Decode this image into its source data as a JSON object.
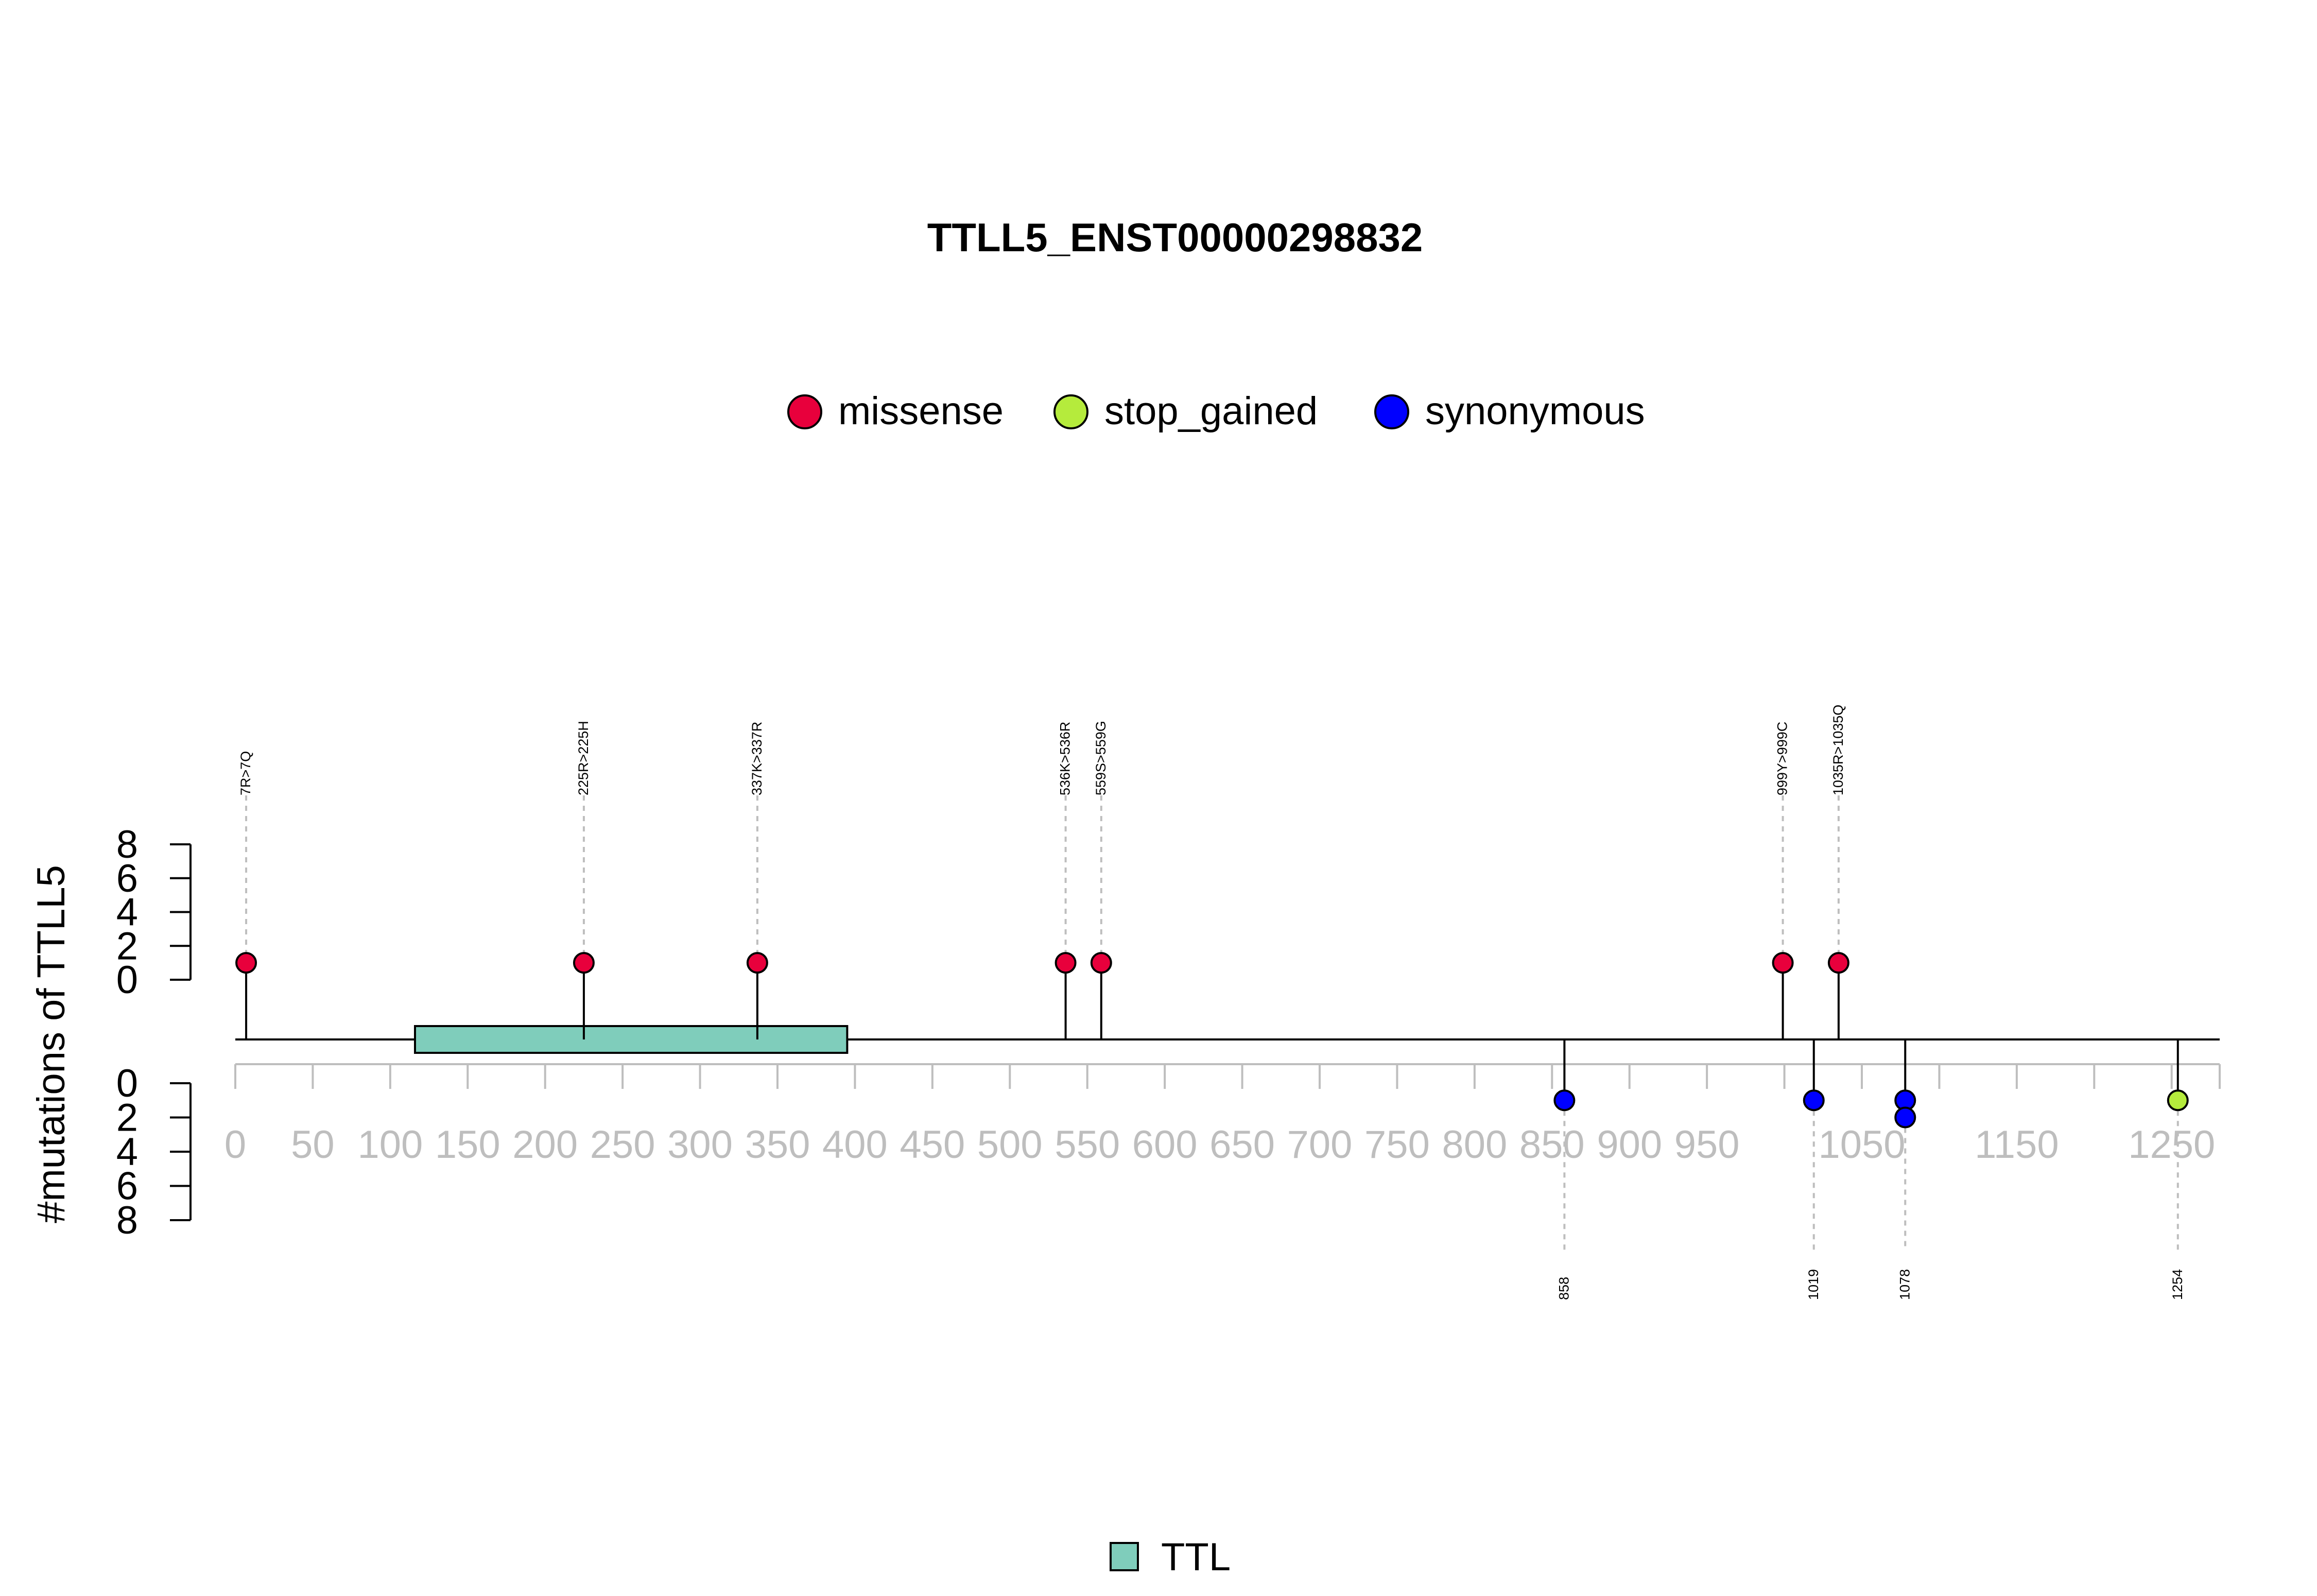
{
  "chart_data": {
    "type": "lollipop",
    "title": "TTLL5_ENST00000298832",
    "ylabel": "#mutations of TTLL5",
    "xlim": [
      0,
      1281
    ],
    "x_ticks": [
      0,
      50,
      100,
      150,
      200,
      250,
      300,
      350,
      400,
      450,
      500,
      550,
      600,
      650,
      700,
      750,
      800,
      850,
      900,
      950,
      1000,
      1050,
      1100,
      1150,
      1200,
      1250
    ],
    "x_tick_labels": [
      "0",
      "50",
      "100",
      "150",
      "200",
      "250",
      "300",
      "350",
      "400",
      "450",
      "500",
      "550",
      "600",
      "650",
      "700",
      "750",
      "800",
      "850",
      "900",
      "950",
      "",
      "1050",
      "",
      "1150",
      "",
      "1250"
    ],
    "y_upper": {
      "ylim": [
        0,
        8
      ],
      "ticks": [
        0,
        2,
        4,
        6,
        8
      ],
      "tick_labels": [
        "0",
        "2",
        "4",
        "6",
        "8"
      ]
    },
    "y_lower": {
      "ylim": [
        0,
        8
      ],
      "ticks": [
        0,
        2,
        4,
        6,
        8
      ],
      "tick_labels": [
        "0",
        "2",
        "4",
        "6",
        "8"
      ]
    },
    "legend": {
      "placement": "top-center",
      "entries": [
        {
          "name": "missense",
          "color": "#E8003C"
        },
        {
          "name": "stop_gained",
          "color": "#B5EB3C"
        },
        {
          "name": "synonymous",
          "color": "#0000FF"
        }
      ]
    },
    "upper_mutations": [
      {
        "pos": 7,
        "count": 1,
        "type": "missense",
        "label": "7R>7Q"
      },
      {
        "pos": 225,
        "count": 1,
        "type": "missense",
        "label": "225R>225H"
      },
      {
        "pos": 337,
        "count": 1,
        "type": "missense",
        "label": "337K>337R"
      },
      {
        "pos": 536,
        "count": 1,
        "type": "missense",
        "label": "536K>536R"
      },
      {
        "pos": 559,
        "count": 1,
        "type": "missense",
        "label": "559S>559G"
      },
      {
        "pos": 999,
        "count": 1,
        "type": "missense",
        "label": "999Y>999C"
      },
      {
        "pos": 1035,
        "count": 1,
        "type": "missense",
        "label": "1035R>1035Q"
      }
    ],
    "lower_mutations": [
      {
        "pos": 858,
        "count": 1,
        "type": "synonymous",
        "label": "858"
      },
      {
        "pos": 1019,
        "count": 1,
        "type": "synonymous",
        "label": "1019"
      },
      {
        "pos": 1078,
        "count": 2,
        "type": "synonymous",
        "label": "1078"
      },
      {
        "pos": 1254,
        "count": 1,
        "type": "stop_gained",
        "label": "1254"
      }
    ],
    "domains": [
      {
        "name": "TTL",
        "start": 116,
        "end": 395,
        "color": "#7FCDBB"
      }
    ],
    "domain_legend": {
      "placement": "bottom-center",
      "entries": [
        {
          "name": "TTL",
          "color": "#7FCDBB"
        }
      ]
    },
    "colors": {
      "axis": "#000000",
      "x_axis": "#BEBEBE",
      "guide": "#BEBEBE",
      "tick_label": "#BEBEBE"
    }
  }
}
